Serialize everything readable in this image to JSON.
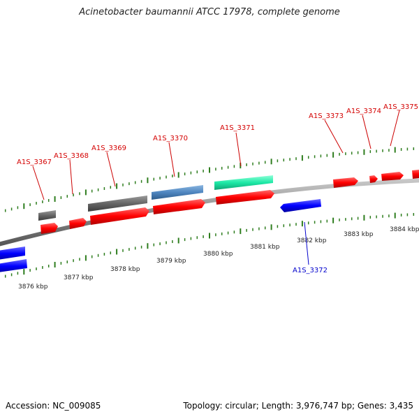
{
  "title": "Acinetobacter baumannii ATCC 17978, complete genome",
  "accession_label": "Accession: NC_009085",
  "summary_label": "Topology: circular; Length: 3,976,747 bp; Genes: 3,435",
  "colors": {
    "forward_gene": "#ff0000",
    "reverse_gene": "#0000ff",
    "forward_label": "#d40000",
    "reverse_label": "#0000cc",
    "tick": "#2e7d1e",
    "backbone": "#8a8a8a",
    "gray_feature": "#666666",
    "steelblue_feature": "#4f86c0",
    "teal_feature": "#1de9a6"
  },
  "ticks": {
    "upper_labels": [],
    "lower_labels": [
      "3876 kbp",
      "3877 kbp",
      "3878 kbp",
      "3879 kbp",
      "3880 kbp",
      "3881 kbp",
      "3882 kbp",
      "3883 kbp",
      "3884 kbp"
    ]
  },
  "genes": [
    {
      "id": "A1S_3367",
      "strand": "+"
    },
    {
      "id": "A1S_3368",
      "strand": "+"
    },
    {
      "id": "A1S_3369",
      "strand": "+"
    },
    {
      "id": "A1S_3370",
      "strand": "+"
    },
    {
      "id": "A1S_3371",
      "strand": "+"
    },
    {
      "id": "A1S_3372",
      "strand": "-"
    },
    {
      "id": "A1S_3373",
      "strand": "+"
    },
    {
      "id": "A1S_3374",
      "strand": "+"
    },
    {
      "id": "A1S_3375",
      "strand": "+"
    }
  ]
}
